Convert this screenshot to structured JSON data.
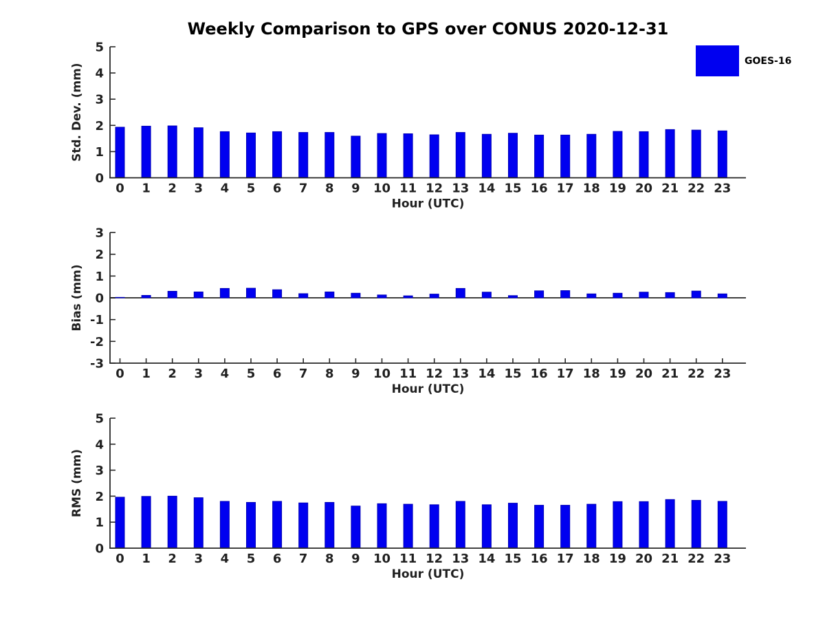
{
  "page": {
    "title": "Weekly Comparison to GPS over CONUS 2020-12-31"
  },
  "legend": {
    "label": "GOES-16",
    "color": "#0000f0"
  },
  "colors": {
    "bar": "#0000f0",
    "bar_edge": "#0000b8",
    "axis": "#262626",
    "text": "#1f1f1f",
    "zero_line": "#000000"
  },
  "chart_data": [
    {
      "type": "bar",
      "name": "std-dev",
      "title": "",
      "xlabel": "Hour (UTC)",
      "ylabel": "Std. Dev. (mm)",
      "legend_entry": "GOES-16",
      "grid": false,
      "ylim": [
        0,
        5
      ],
      "yticks": [
        0,
        1,
        2,
        3,
        4,
        5
      ],
      "categories": [
        "0",
        "1",
        "2",
        "3",
        "4",
        "5",
        "6",
        "7",
        "8",
        "9",
        "10",
        "11",
        "12",
        "13",
        "14",
        "15",
        "16",
        "17",
        "18",
        "19",
        "20",
        "21",
        "22",
        "23"
      ],
      "values": [
        1.93,
        1.97,
        1.98,
        1.91,
        1.76,
        1.71,
        1.76,
        1.73,
        1.73,
        1.59,
        1.69,
        1.68,
        1.64,
        1.73,
        1.66,
        1.7,
        1.63,
        1.63,
        1.66,
        1.77,
        1.76,
        1.84,
        1.82,
        1.79
      ]
    },
    {
      "type": "bar",
      "name": "bias",
      "title": "",
      "xlabel": "Hour (UTC)",
      "ylabel": "Bias (mm)",
      "legend_entry": "GOES-16",
      "grid": false,
      "ylim": [
        -3,
        3
      ],
      "yticks": [
        -3,
        -2,
        -1,
        0,
        1,
        2,
        3
      ],
      "zero_line": true,
      "categories": [
        "0",
        "1",
        "2",
        "3",
        "4",
        "5",
        "6",
        "7",
        "8",
        "9",
        "10",
        "11",
        "12",
        "13",
        "14",
        "15",
        "16",
        "17",
        "18",
        "19",
        "20",
        "21",
        "22",
        "23"
      ],
      "values": [
        0.02,
        0.11,
        0.3,
        0.27,
        0.43,
        0.44,
        0.37,
        0.19,
        0.27,
        0.21,
        0.13,
        0.09,
        0.17,
        0.43,
        0.26,
        0.1,
        0.32,
        0.33,
        0.18,
        0.21,
        0.26,
        0.24,
        0.31,
        0.18
      ]
    },
    {
      "type": "bar",
      "name": "rms",
      "title": "",
      "xlabel": "Hour (UTC)",
      "ylabel": "RMS (mm)",
      "legend_entry": "GOES-16",
      "grid": false,
      "ylim": [
        0,
        5
      ],
      "yticks": [
        0,
        1,
        2,
        3,
        4,
        5
      ],
      "categories": [
        "0",
        "1",
        "2",
        "3",
        "4",
        "5",
        "6",
        "7",
        "8",
        "9",
        "10",
        "11",
        "12",
        "13",
        "14",
        "15",
        "16",
        "17",
        "18",
        "19",
        "20",
        "21",
        "22",
        "23"
      ],
      "values": [
        1.96,
        1.99,
        2.0,
        1.94,
        1.8,
        1.76,
        1.8,
        1.74,
        1.76,
        1.62,
        1.71,
        1.69,
        1.67,
        1.8,
        1.67,
        1.73,
        1.65,
        1.65,
        1.69,
        1.79,
        1.79,
        1.87,
        1.84,
        1.8
      ]
    }
  ]
}
